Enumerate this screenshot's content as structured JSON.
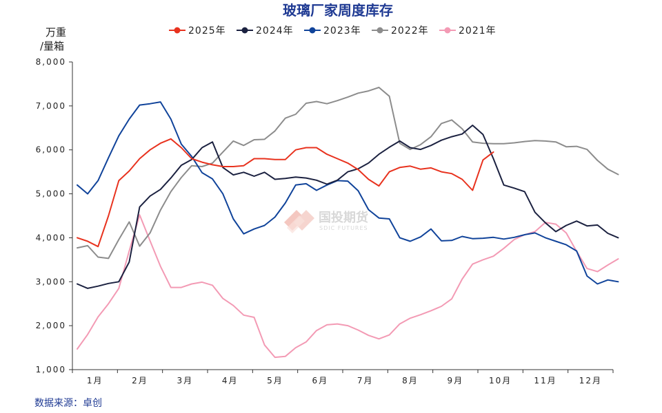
{
  "chart_data": {
    "type": "line",
    "title": "玻璃厂家周度库存",
    "ylabel_line1": "万重",
    "ylabel_line2": "/量箱",
    "source": "数据来源：卓创",
    "watermark": {
      "name": "国投期货",
      "sub": "SDIC FUTURES"
    },
    "ylim": [
      1000,
      8000
    ],
    "yticks": [
      1000,
      2000,
      3000,
      4000,
      5000,
      6000,
      7000,
      8000
    ],
    "ytick_labels": [
      "1,000",
      "2,000",
      "3,000",
      "4,000",
      "5,000",
      "6,000",
      "7,000",
      "8,000"
    ],
    "x_weeks": 52,
    "month_labels": [
      "1月",
      "2月",
      "3月",
      "4月",
      "5月",
      "6月",
      "7月",
      "8月",
      "9月",
      "10月",
      "11月",
      "12月"
    ],
    "series": [
      {
        "name": "2025年",
        "color": "#e8321e",
        "values": [
          4000,
          3920,
          3800,
          4500,
          5300,
          5520,
          5800,
          6000,
          6150,
          6250,
          6050,
          5800,
          5720,
          5660,
          5620,
          5620,
          5640,
          5800,
          5800,
          5780,
          5780,
          6000,
          6050,
          6050,
          5900,
          5800,
          5700,
          5550,
          5330,
          5180,
          5500,
          5600,
          5630,
          5560,
          5590,
          5500,
          5460,
          5330,
          5080,
          5770,
          5950
        ]
      },
      {
        "name": "2024年",
        "color": "#1b2140",
        "values": [
          2950,
          2850,
          2900,
          2960,
          3000,
          3450,
          4700,
          4950,
          5100,
          5360,
          5650,
          5780,
          6050,
          6180,
          5600,
          5430,
          5490,
          5400,
          5490,
          5330,
          5350,
          5380,
          5360,
          5310,
          5220,
          5310,
          5500,
          5570,
          5700,
          5900,
          6060,
          6200,
          6050,
          6010,
          6100,
          6220,
          6300,
          6360,
          6560,
          6350,
          5800,
          5200,
          5130,
          5050,
          4580,
          4340,
          4140,
          4280,
          4380,
          4270,
          4290,
          4100,
          4000
        ]
      },
      {
        "name": "2023年",
        "color": "#10439a",
        "values": [
          5200,
          5000,
          5300,
          5820,
          6320,
          6700,
          7020,
          7050,
          7090,
          6700,
          6130,
          5850,
          5480,
          5340,
          5000,
          4430,
          4090,
          4200,
          4280,
          4470,
          4790,
          5200,
          5230,
          5080,
          5200,
          5300,
          5290,
          5070,
          4640,
          4450,
          4430,
          4000,
          3920,
          4020,
          4200,
          3930,
          3940,
          4030,
          3980,
          3990,
          4010,
          3970,
          4010,
          4070,
          4110,
          4000,
          3920,
          3840,
          3700,
          3130,
          2950,
          3040,
          3000
        ]
      },
      {
        "name": "2022年",
        "color": "#8c8c8c",
        "values": [
          3770,
          3820,
          3560,
          3530,
          3960,
          4360,
          3810,
          4110,
          4630,
          5050,
          5370,
          5640,
          5620,
          5700,
          5950,
          6200,
          6100,
          6230,
          6240,
          6430,
          6720,
          6810,
          7060,
          7100,
          7050,
          7120,
          7200,
          7290,
          7340,
          7420,
          7220,
          6150,
          6010,
          6120,
          6300,
          6600,
          6680,
          6480,
          6180,
          6150,
          6140,
          6140,
          6160,
          6190,
          6210,
          6200,
          6180,
          6070,
          6080,
          6010,
          5760,
          5560,
          5440
        ]
      },
      {
        "name": "2021年",
        "color": "#f39ab4",
        "values": [
          1470,
          1800,
          2200,
          2500,
          2850,
          3700,
          4520,
          3930,
          3350,
          2870,
          2870,
          2950,
          2990,
          2920,
          2620,
          2460,
          2240,
          2190,
          1560,
          1280,
          1300,
          1500,
          1630,
          1890,
          2020,
          2040,
          2000,
          1900,
          1780,
          1700,
          1790,
          2040,
          2170,
          2250,
          2340,
          2440,
          2610,
          3060,
          3400,
          3500,
          3580,
          3760,
          3960,
          4070,
          4140,
          4350,
          4310,
          4110,
          3690,
          3300,
          3230,
          3380,
          3520
        ]
      }
    ]
  }
}
